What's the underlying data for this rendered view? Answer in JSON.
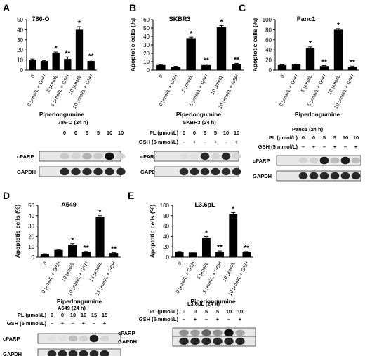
{
  "panels": [
    {
      "label": "A",
      "chart": {
        "type": "bar",
        "title": "786-O",
        "ylabel": "",
        "ylim": [
          0,
          50
        ],
        "yticks": [
          0,
          10,
          20,
          30,
          40,
          50
        ],
        "categories": [
          "0",
          "0 μmol/L + GSH",
          "5 μmol/L",
          "5 μmol/L + GSH",
          "10 μmol/L",
          "10 μmol/L + GSH"
        ],
        "values": [
          10,
          9,
          17,
          11,
          40,
          9
        ],
        "errors": [
          1,
          0.5,
          1,
          2,
          3,
          1
        ],
        "sig": [
          "",
          "",
          "*",
          "**",
          "*",
          "**"
        ],
        "xlabel": "Piperlongumine"
      },
      "blot": {
        "title": "786-O (24 h)",
        "pl_label": "",
        "gsh_label": "",
        "pl": [
          "0",
          "0",
          "5",
          "5",
          "10",
          "10"
        ],
        "gsh": [
          "",
          "",
          "",
          "",
          "",
          ""
        ],
        "bands": [
          {
            "name": "cPARP",
            "intensity": [
              0.15,
              0.1,
              0.25,
              0.15,
              0.95,
              0.1
            ]
          },
          {
            "name": "GAPDH",
            "intensity": [
              0.85,
              0.85,
              0.85,
              0.85,
              0.85,
              0.85
            ]
          }
        ]
      }
    },
    {
      "label": "B",
      "chart": {
        "type": "bar",
        "title": "SKBR3",
        "ylabel": "Apoptotic cells (%)",
        "ylim": [
          0,
          60
        ],
        "yticks": [
          0,
          10,
          20,
          30,
          40,
          50,
          60
        ],
        "categories": [
          "0",
          "0 μmol/L + GSH",
          "5 μmol/L",
          "5 μmol/L + GSH",
          "10 μmol/L",
          "10 μmol/L + GSH"
        ],
        "values": [
          6,
          4,
          38,
          6,
          51,
          7
        ],
        "errors": [
          0.5,
          0.5,
          1,
          1,
          2,
          1
        ],
        "sig": [
          "",
          "",
          "*",
          "**",
          "*",
          "**"
        ],
        "xlabel": "Piperlongumine"
      },
      "blot": {
        "title": "SKBR3 (24 h)",
        "pl_label": "PL (μmol/L)",
        "gsh_label": "GSH (5 mmol/L)",
        "pl": [
          "0",
          "0",
          "5",
          "5",
          "10",
          "10"
        ],
        "gsh": [
          "–",
          "+",
          "–",
          "+",
          "–",
          "+"
        ],
        "bands": [
          {
            "name": "cPARP",
            "intensity": [
              0.05,
              0.05,
              0.85,
              0.1,
              0.85,
              0.1
            ]
          },
          {
            "name": "GAPDH",
            "intensity": [
              0.85,
              0.85,
              0.85,
              0.85,
              0.85,
              0.85
            ]
          }
        ]
      }
    },
    {
      "label": "C",
      "chart": {
        "type": "bar",
        "title": "Panc1",
        "ylabel": "Apoptotic cells (%)",
        "ylim": [
          0,
          100
        ],
        "yticks": [
          0,
          20,
          40,
          60,
          80,
          100
        ],
        "categories": [
          "0",
          "0 μmol/L + GSH",
          "5 μmol/L",
          "5 μmol/L + GSH",
          "10 μmol/L",
          "10 μmol/L + GSH"
        ],
        "values": [
          10,
          11,
          43,
          8,
          80,
          7
        ],
        "errors": [
          0.5,
          0.5,
          3,
          1,
          2,
          1
        ],
        "sig": [
          "",
          "",
          "*",
          "**",
          "*",
          "**"
        ],
        "xlabel": "Piperlongumine"
      },
      "blot": {
        "title": "Panc1 (24 h)",
        "pl_label": "PL (μmol/L)",
        "gsh_label": "GSH (5 mmol/L)",
        "pl": [
          "0",
          "0",
          "5",
          "5",
          "10",
          "10"
        ],
        "gsh": [
          "–",
          "+",
          "–",
          "+",
          "–",
          "+"
        ],
        "bands": [
          {
            "name": "cPARP",
            "intensity": [
              0.1,
              0.1,
              0.9,
              0.2,
              0.9,
              0.2
            ]
          },
          {
            "name": "GAPDH",
            "intensity": [
              0.85,
              0.85,
              0.85,
              0.85,
              0.85,
              0.85
            ]
          }
        ]
      }
    },
    {
      "label": "D",
      "chart": {
        "type": "bar",
        "title": "A549",
        "ylabel": "Apoptotic cells (%)",
        "ylim": [
          0,
          50
        ],
        "yticks": [
          0,
          10,
          20,
          30,
          40,
          50
        ],
        "categories": [
          "0",
          "0 μmol/L + GSH",
          "10 μmol/L",
          "10 μmol/L + GSH",
          "15 μmol/L",
          "15 μmol/L + GSH"
        ],
        "values": [
          3,
          7,
          12,
          5,
          39,
          4
        ],
        "errors": [
          0.3,
          0.5,
          1,
          0.5,
          1,
          0.5
        ],
        "sig": [
          "",
          "",
          "*",
          "**",
          "*",
          "**"
        ],
        "xlabel": "Piperlongumine"
      },
      "blot": {
        "title": "A549 (24 h)",
        "pl_label": "PL (μmol/L)",
        "gsh_label": "GSH (5 mmol/L)",
        "pl": [
          "0",
          "0",
          "10",
          "10",
          "15",
          "15"
        ],
        "gsh": [
          "–",
          "+",
          "–",
          "+",
          "–",
          "+"
        ],
        "bands": [
          {
            "name": "cPARP",
            "intensity": [
              0.05,
              0.05,
              0.2,
              0.1,
              0.9,
              0.1
            ]
          },
          {
            "name": "GAPDH",
            "intensity": [
              0.85,
              0.85,
              0.85,
              0.85,
              0.85,
              0.85
            ]
          }
        ]
      }
    },
    {
      "label": "E",
      "chart": {
        "type": "bar",
        "title": "L3.6pL",
        "ylabel": "Apoptotic cells (%)",
        "ylim": [
          0,
          100
        ],
        "yticks": [
          0,
          20,
          40,
          60,
          80,
          100
        ],
        "categories": [
          "0",
          "0 μmol/L + GSH",
          "5 μmol/L",
          "5 μmol/L + GSH",
          "10 μmol/L",
          "10 μmol/L + GSH"
        ],
        "values": [
          10,
          9,
          38,
          10,
          83,
          10
        ],
        "errors": [
          1,
          1,
          2,
          2,
          3,
          1
        ],
        "sig": [
          "",
          "",
          "*",
          "**",
          "*",
          "**"
        ],
        "xlabel": "Piperlongumine"
      },
      "blot": {
        "title": "L3.6pL (24 h)",
        "pl_label": "PL (μmol/L)",
        "gsh_label": "GSH (5 mmol/L)",
        "pl": [
          "0",
          "0",
          "5",
          "5",
          "10",
          "10"
        ],
        "gsh": [
          "–",
          "+",
          "–",
          "+",
          "–",
          "+"
        ],
        "bands": [
          {
            "name": "cPARP",
            "intensity": [
              0.4,
              0.35,
              0.6,
              0.4,
              0.95,
              0.3
            ]
          },
          {
            "name": "GAPDH",
            "intensity": [
              0.85,
              0.85,
              0.85,
              0.85,
              0.85,
              0.85
            ]
          }
        ]
      }
    }
  ],
  "chart_data": [
    {
      "type": "bar",
      "title": "786-O",
      "ylabel": "",
      "xlabel": "Piperlongumine",
      "ylim": [
        0,
        50
      ],
      "categories": [
        "0",
        "0 μmol/L + GSH",
        "5 μmol/L",
        "5 μmol/L + GSH",
        "10 μmol/L",
        "10 μmol/L + GSH"
      ],
      "values": [
        10,
        9,
        17,
        11,
        40,
        9
      ]
    },
    {
      "type": "bar",
      "title": "SKBR3",
      "ylabel": "Apoptotic cells (%)",
      "xlabel": "Piperlongumine",
      "ylim": [
        0,
        60
      ],
      "categories": [
        "0",
        "0 μmol/L + GSH",
        "5 μmol/L",
        "5 μmol/L + GSH",
        "10 μmol/L",
        "10 μmol/L + GSH"
      ],
      "values": [
        6,
        4,
        38,
        6,
        51,
        7
      ]
    },
    {
      "type": "bar",
      "title": "Panc1",
      "ylabel": "Apoptotic cells (%)",
      "xlabel": "Piperlongumine",
      "ylim": [
        0,
        100
      ],
      "categories": [
        "0",
        "0 μmol/L + GSH",
        "5 μmol/L",
        "5 μmol/L + GSH",
        "10 μmol/L",
        "10 μmol/L + GSH"
      ],
      "values": [
        10,
        11,
        43,
        8,
        80,
        7
      ]
    },
    {
      "type": "bar",
      "title": "A549",
      "ylabel": "Apoptotic cells (%)",
      "xlabel": "Piperlongumine",
      "ylim": [
        0,
        50
      ],
      "categories": [
        "0",
        "0 μmol/L + GSH",
        "10 μmol/L",
        "10 μmol/L + GSH",
        "15 μmol/L",
        "15 μmol/L + GSH"
      ],
      "values": [
        3,
        7,
        12,
        5,
        39,
        4
      ]
    },
    {
      "type": "bar",
      "title": "L3.6pL",
      "ylabel": "Apoptotic cells (%)",
      "xlabel": "Piperlongumine",
      "ylim": [
        0,
        100
      ],
      "categories": [
        "0",
        "0 μmol/L + GSH",
        "5 μmol/L",
        "5 μmol/L + GSH",
        "10 μmol/L",
        "10 μmol/L + GSH"
      ],
      "values": [
        10,
        9,
        38,
        10,
        83,
        10
      ]
    }
  ]
}
